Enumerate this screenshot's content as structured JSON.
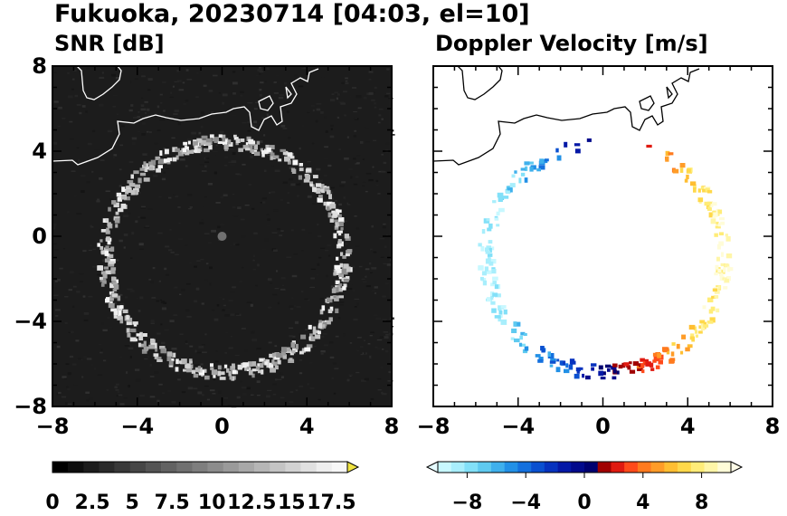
{
  "title": "Fukuoka, 20230714 [04:03, el=10]",
  "chart_data": [
    {
      "type": "heatmap",
      "title": "SNR [dB]",
      "xlim": [
        -8,
        8
      ],
      "ylim": [
        -8,
        8
      ],
      "x_ticks": [
        "−8",
        "−4",
        "0",
        "4",
        "8"
      ],
      "y_ticks": [
        "8",
        "4",
        "0",
        "−4",
        "−8"
      ],
      "background_color": "#1c1c1c",
      "coast_color": "#ffffff",
      "echo_ring": {
        "center": [
          0,
          0
        ],
        "radius_x": 5.6,
        "radius_y": 5.4,
        "offset_y": -0.9
      },
      "colorbar": {
        "ticks": [
          "0",
          "2.5",
          "5",
          "7.5",
          "10",
          "12.5",
          "15",
          "17.5"
        ],
        "min": 0,
        "max": 18.5,
        "colors": [
          "#000000",
          "#0e0e0e",
          "#1c1c1c",
          "#2a2a2a",
          "#383838",
          "#464646",
          "#545454",
          "#626262",
          "#707070",
          "#7e7e7e",
          "#8c8c8c",
          "#9a9a9a",
          "#a8a8a8",
          "#b6b6b6",
          "#c4c4c4",
          "#d2d2d2",
          "#e0e0e0",
          "#eeeeee",
          "#f7f7f7"
        ],
        "extend_color": "#f0e442"
      }
    },
    {
      "type": "heatmap",
      "title": "Doppler Velocity [m/s]",
      "xlim": [
        -8,
        8
      ],
      "ylim": [
        -8,
        8
      ],
      "x_ticks": [
        "−8",
        "−4",
        "0",
        "4",
        "8"
      ],
      "y_ticks": [],
      "background_color": "#ffffff",
      "coast_color": "#000000",
      "colorbar": {
        "ticks": [
          "−8",
          "−4",
          "0",
          "4",
          "8"
        ],
        "min": -10,
        "max": 10,
        "colors": [
          "#c8f8ff",
          "#a8eefc",
          "#82e0f8",
          "#5fcaf0",
          "#3fb0ec",
          "#2290e6",
          "#1470de",
          "#0a50d0",
          "#0632be",
          "#0418a6",
          "#020a8c",
          "#000070",
          "#a00000",
          "#e01a10",
          "#ff4a1a",
          "#ff7a1e",
          "#ff9c28",
          "#ffbe32",
          "#ffd84a",
          "#ffec78",
          "#fff6a8",
          "#fffcd8"
        ],
        "extend_low_color": "#e6fcff",
        "extend_high_color": "#fffce8"
      }
    }
  ]
}
